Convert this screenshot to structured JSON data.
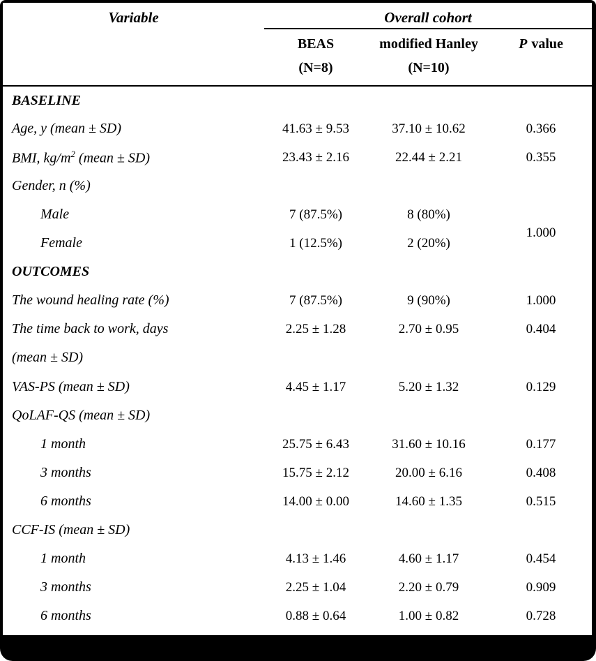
{
  "document": {
    "colors": {
      "text": "#000000",
      "background": "#ffffff",
      "frame": "#000000"
    },
    "header": {
      "variable": "Variable",
      "overall_cohort": "Overall cohort",
      "beas_name": "BEAS",
      "beas_n": "(N=8)",
      "hanley_name": "modified Hanley",
      "hanley_n": "(N=10)",
      "p_label_italic": "P",
      "p_label_rest": "value"
    },
    "rows": [
      {
        "type": "section",
        "label": "BASELINE"
      },
      {
        "type": "data",
        "label": "Age, y (mean ± SD)",
        "beas": "41.63 ± 9.53",
        "hanley": "37.10 ± 10.62",
        "p": "0.366"
      },
      {
        "type": "data-sup",
        "label_pre": "BMI, kg/m",
        "label_sup": "2",
        "label_post": " (mean ± SD)",
        "beas": "23.43 ± 2.16",
        "hanley": "22.44 ± 2.21",
        "p": "0.355"
      },
      {
        "type": "label",
        "label": "Gender, n (%)"
      },
      {
        "type": "sub",
        "label": "Male",
        "beas": "7 (87.5%)",
        "hanley": "8 (80%)",
        "p": "1.000"
      },
      {
        "type": "sub",
        "label": "Female",
        "beas": "1 (12.5%)",
        "hanley": "2 (20%)"
      },
      {
        "type": "section",
        "label": "OUTCOMES"
      },
      {
        "type": "data",
        "label": "The wound healing rate (%)",
        "beas": "7 (87.5%)",
        "hanley": "9 (90%)",
        "p": "1.000"
      },
      {
        "type": "data2",
        "label_line1": "The time back to work, days",
        "label_line2": "(mean ± SD)",
        "beas": "2.25 ± 1.28",
        "hanley": "2.70 ± 0.95",
        "p": "0.404"
      },
      {
        "type": "data",
        "label": "VAS-PS (mean ± SD)",
        "beas": "4.45 ± 1.17",
        "hanley": "5.20 ± 1.32",
        "p": "0.129"
      },
      {
        "type": "label",
        "label": "QoLAF-QS (mean ± SD)"
      },
      {
        "type": "sub",
        "label": "1 month",
        "beas": "25.75 ± 6.43",
        "hanley": "31.60 ± 10.16",
        "p": "0.177"
      },
      {
        "type": "sub",
        "label": "3 months",
        "beas": "15.75 ± 2.12",
        "hanley": "20.00 ± 6.16",
        "p": "0.408"
      },
      {
        "type": "sub",
        "label": "6 months",
        "beas": "14.00 ± 0.00",
        "hanley": "14.60 ± 1.35",
        "p": "0.515"
      },
      {
        "type": "label",
        "label": "CCF-IS (mean ± SD)"
      },
      {
        "type": "sub",
        "label": "1 month",
        "beas": "4.13 ± 1.46",
        "hanley": "4.60 ± 1.17",
        "p": "0.454"
      },
      {
        "type": "sub",
        "label": "3 months",
        "beas": "2.25 ± 1.04",
        "hanley": "2.20 ± 0.79",
        "p": "0.909"
      },
      {
        "type": "sub",
        "label": "6 months",
        "beas": "0.88 ± 0.64",
        "hanley": "1.00 ± 0.82",
        "p": "0.728"
      }
    ]
  }
}
